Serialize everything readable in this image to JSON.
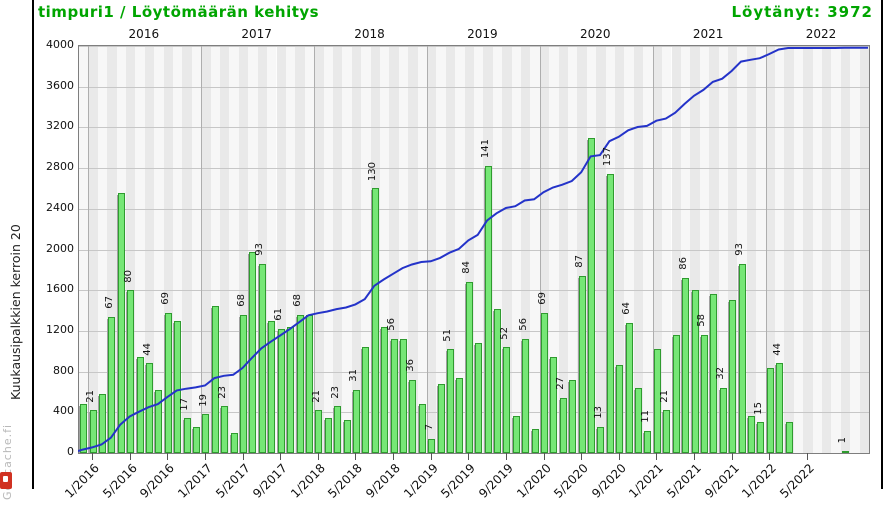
{
  "header": {
    "title": "timpuri1 / Löytömäärän kehitys",
    "found": "Löytänyt: 3972"
  },
  "watermark": "Geocache.fi",
  "y_axis": {
    "label": "Kuukausipalkkien kerroin 20",
    "ticks": [
      0,
      400,
      800,
      1200,
      1600,
      2000,
      2400,
      2800,
      3200,
      3600,
      4000
    ],
    "max": 4000
  },
  "top_years": [
    "2016",
    "2017",
    "2018",
    "2019",
    "2020",
    "2021",
    "2022"
  ],
  "colors": {
    "title_green": "#00a500",
    "bar_fill": "#76e776",
    "bar_border": "#2f9b2f",
    "line_blue": "#2433c9",
    "stripe_dark": "#e9e9e9",
    "stripe_light": "#f7f7f7",
    "grid": "#c7c7c7",
    "watermark_gray": "#b9b9b9",
    "logo_red": "#d03222"
  },
  "chart_data": {
    "type": "bar+line",
    "title": "timpuri1 / Löytömäärän kehitys",
    "note_bar_scale": "monthly find count × 20 plotted on left axis",
    "line": "cumulative finds, ends at total 3972",
    "total_found": 3972,
    "ylim": [
      0,
      4000
    ],
    "x_tick_labels": [
      "1/2016",
      "5/2016",
      "9/2016",
      "1/2017",
      "5/2017",
      "9/2017",
      "1/2018",
      "5/2018",
      "9/2018",
      "1/2019",
      "5/2019",
      "9/2019",
      "1/2020",
      "5/2020",
      "9/2020",
      "1/2021",
      "5/2021",
      "9/2021",
      "1/2022",
      "5/2022"
    ],
    "months": [
      {
        "m": "12/2015",
        "v": 24,
        "label": ""
      },
      {
        "m": "1/2016",
        "v": 21,
        "label": "21"
      },
      {
        "m": "2/2016",
        "v": 29,
        "label": ""
      },
      {
        "m": "3/2016",
        "v": 67,
        "label": "67"
      },
      {
        "m": "4/2016",
        "v": 128,
        "label": ""
      },
      {
        "m": "5/2016",
        "v": 80,
        "label": "80"
      },
      {
        "m": "6/2016",
        "v": 47,
        "label": ""
      },
      {
        "m": "7/2016",
        "v": 44,
        "label": "44"
      },
      {
        "m": "8/2016",
        "v": 31,
        "label": ""
      },
      {
        "m": "9/2016",
        "v": 69,
        "label": "69"
      },
      {
        "m": "10/2016",
        "v": 65,
        "label": ""
      },
      {
        "m": "11/2016",
        "v": 17,
        "label": "17"
      },
      {
        "m": "12/2016",
        "v": 13,
        "label": ""
      },
      {
        "m": "1/2017",
        "v": 19,
        "label": "19"
      },
      {
        "m": "2/2017",
        "v": 72,
        "label": ""
      },
      {
        "m": "3/2017",
        "v": 23,
        "label": "23"
      },
      {
        "m": "4/2017",
        "v": 10,
        "label": ""
      },
      {
        "m": "5/2017",
        "v": 68,
        "label": "68"
      },
      {
        "m": "6/2017",
        "v": 99,
        "label": ""
      },
      {
        "m": "7/2017",
        "v": 93,
        "label": "93"
      },
      {
        "m": "8/2017",
        "v": 65,
        "label": ""
      },
      {
        "m": "9/2017",
        "v": 61,
        "label": "61"
      },
      {
        "m": "10/2017",
        "v": 62,
        "label": ""
      },
      {
        "m": "11/2017",
        "v": 68,
        "label": "68"
      },
      {
        "m": "12/2017",
        "v": 68,
        "label": ""
      },
      {
        "m": "1/2018",
        "v": 21,
        "label": "21"
      },
      {
        "m": "2/2018",
        "v": 17,
        "label": ""
      },
      {
        "m": "3/2018",
        "v": 23,
        "label": "23"
      },
      {
        "m": "4/2018",
        "v": 16,
        "label": ""
      },
      {
        "m": "5/2018",
        "v": 31,
        "label": "31"
      },
      {
        "m": "6/2018",
        "v": 52,
        "label": ""
      },
      {
        "m": "7/2018",
        "v": 130,
        "label": "130"
      },
      {
        "m": "8/2018",
        "v": 62,
        "label": ""
      },
      {
        "m": "9/2018",
        "v": 56,
        "label": "56"
      },
      {
        "m": "10/2018",
        "v": 56,
        "label": ""
      },
      {
        "m": "11/2018",
        "v": 36,
        "label": "36"
      },
      {
        "m": "12/2018",
        "v": 24,
        "label": ""
      },
      {
        "m": "1/2019",
        "v": 7,
        "label": "7"
      },
      {
        "m": "2/2019",
        "v": 34,
        "label": ""
      },
      {
        "m": "3/2019",
        "v": 51,
        "label": "51"
      },
      {
        "m": "4/2019",
        "v": 37,
        "label": ""
      },
      {
        "m": "5/2019",
        "v": 84,
        "label": "84"
      },
      {
        "m": "6/2019",
        "v": 54,
        "label": ""
      },
      {
        "m": "7/2019",
        "v": 141,
        "label": "141"
      },
      {
        "m": "8/2019",
        "v": 71,
        "label": ""
      },
      {
        "m": "9/2019",
        "v": 52,
        "label": "52"
      },
      {
        "m": "10/2019",
        "v": 18,
        "label": ""
      },
      {
        "m": "11/2019",
        "v": 56,
        "label": "56"
      },
      {
        "m": "12/2019",
        "v": 12,
        "label": ""
      },
      {
        "m": "1/2020",
        "v": 69,
        "label": "69"
      },
      {
        "m": "2/2020",
        "v": 47,
        "label": ""
      },
      {
        "m": "3/2020",
        "v": 27,
        "label": "27"
      },
      {
        "m": "4/2020",
        "v": 36,
        "label": ""
      },
      {
        "m": "5/2020",
        "v": 87,
        "label": "87"
      },
      {
        "m": "6/2020",
        "v": 155,
        "label": ""
      },
      {
        "m": "7/2020",
        "v": 13,
        "label": "13"
      },
      {
        "m": "8/2020",
        "v": 137,
        "label": "137"
      },
      {
        "m": "9/2020",
        "v": 43,
        "label": ""
      },
      {
        "m": "10/2020",
        "v": 64,
        "label": "64"
      },
      {
        "m": "11/2020",
        "v": 32,
        "label": ""
      },
      {
        "m": "12/2020",
        "v": 11,
        "label": "11"
      },
      {
        "m": "1/2021",
        "v": 51,
        "label": ""
      },
      {
        "m": "2/2021",
        "v": 21,
        "label": "21"
      },
      {
        "m": "3/2021",
        "v": 58,
        "label": ""
      },
      {
        "m": "4/2021",
        "v": 86,
        "label": "86"
      },
      {
        "m": "5/2021",
        "v": 80,
        "label": ""
      },
      {
        "m": "6/2021",
        "v": 58,
        "label": "58"
      },
      {
        "m": "7/2021",
        "v": 78,
        "label": ""
      },
      {
        "m": "8/2021",
        "v": 32,
        "label": "32"
      },
      {
        "m": "9/2021",
        "v": 75,
        "label": ""
      },
      {
        "m": "10/2021",
        "v": 93,
        "label": "93"
      },
      {
        "m": "11/2021",
        "v": 18,
        "label": ""
      },
      {
        "m": "12/2021",
        "v": 15,
        "label": "15"
      },
      {
        "m": "1/2022",
        "v": 42,
        "label": ""
      },
      {
        "m": "2/2022",
        "v": 44,
        "label": "44"
      },
      {
        "m": "3/2022",
        "v": 15,
        "label": ""
      },
      {
        "m": "4/2022",
        "v": 0,
        "label": ""
      },
      {
        "m": "5/2022",
        "v": 0,
        "label": ""
      },
      {
        "m": "6/2022",
        "v": 0,
        "label": ""
      },
      {
        "m": "7/2022",
        "v": 0,
        "label": ""
      },
      {
        "m": "8/2022",
        "v": 0,
        "label": ""
      },
      {
        "m": "9/2022",
        "v": 1,
        "label": "1"
      },
      {
        "m": "10/2022",
        "v": 0,
        "label": ""
      },
      {
        "m": "11/2022",
        "v": 0,
        "label": ""
      }
    ]
  }
}
